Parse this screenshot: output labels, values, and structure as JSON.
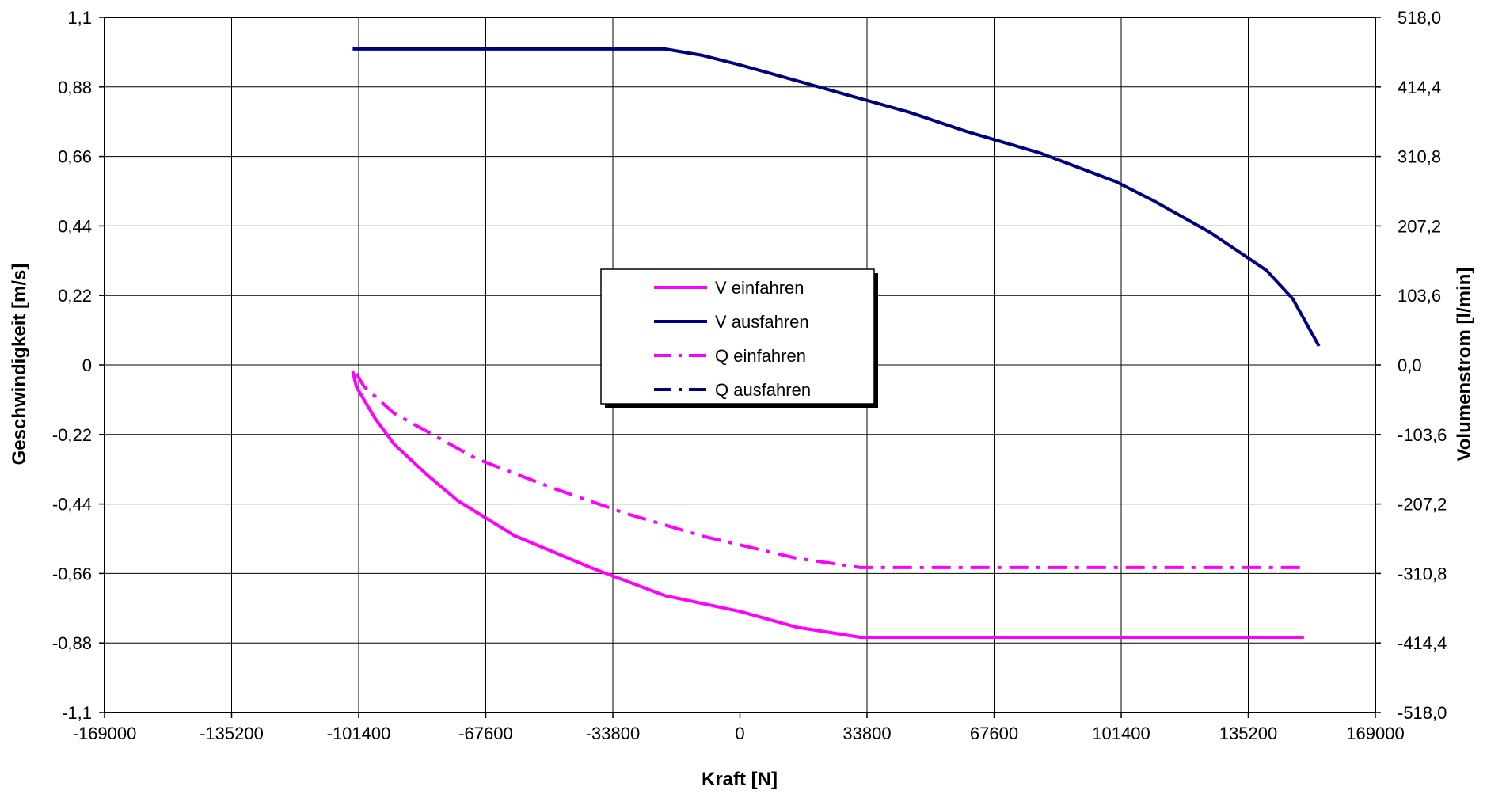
{
  "chart_data": {
    "type": "line",
    "title": "",
    "xlabel": "Kraft [N]",
    "ylabel_left": "Geschwindigkeit [m/s]",
    "ylabel_right": "Volumenstrom [l/min]",
    "xlim": [
      -169000,
      169000
    ],
    "ylim_left": [
      -1.1,
      1.1
    ],
    "ylim_right": [
      -518.0,
      518.0
    ],
    "grid": true,
    "legend_position": "center",
    "x_ticks": [
      "-169000",
      "-135200",
      "-101400",
      "-67600",
      "-33800",
      "0",
      "33800",
      "67600",
      "101400",
      "135200",
      "169000"
    ],
    "y_left_ticks": [
      "1,1",
      "0,88",
      "0,66",
      "0,44",
      "0,22",
      "0",
      "-0,22",
      "-0,44",
      "-0,66",
      "-0,88",
      "-1,1"
    ],
    "y_right_ticks": [
      "518,0",
      "414,4",
      "310,8",
      "207,2",
      "103,6",
      "0,0",
      "-103,6",
      "-207,2",
      "-310,8",
      "-414,4",
      "-518,0"
    ],
    "series": [
      {
        "name": "V einfahren",
        "color": "#ff00ff",
        "dash": "solid",
        "axis": "left",
        "points": [
          [
            -103000,
            -0.02
          ],
          [
            -102000,
            -0.07
          ],
          [
            -97000,
            -0.17
          ],
          [
            -92000,
            -0.25
          ],
          [
            -83000,
            -0.35
          ],
          [
            -75000,
            -0.43
          ],
          [
            -60000,
            -0.54
          ],
          [
            -40000,
            -0.64
          ],
          [
            -20000,
            -0.73
          ],
          [
            0,
            -0.78
          ],
          [
            15000,
            -0.83
          ],
          [
            32000,
            -0.862
          ],
          [
            150000,
            -0.862
          ]
        ]
      },
      {
        "name": "V ausfahren",
        "color": "#000080",
        "dash": "solid",
        "axis": "left",
        "points": [
          [
            -103000,
            1.0
          ],
          [
            -20000,
            1.0
          ],
          [
            -10000,
            0.98
          ],
          [
            0,
            0.95
          ],
          [
            15000,
            0.9
          ],
          [
            30000,
            0.85
          ],
          [
            45000,
            0.8
          ],
          [
            60000,
            0.74
          ],
          [
            80000,
            0.67
          ],
          [
            100000,
            0.58
          ],
          [
            110000,
            0.52
          ],
          [
            125000,
            0.42
          ],
          [
            140000,
            0.3
          ],
          [
            147000,
            0.21
          ],
          [
            154000,
            0.06
          ]
        ]
      },
      {
        "name": "Q einfahren",
        "color": "#ff00ff",
        "dash": "dashdot",
        "axis": "right",
        "points": [
          [
            -102000,
            -13
          ],
          [
            -100000,
            -32
          ],
          [
            -92000,
            -72
          ],
          [
            -70000,
            -140
          ],
          [
            -50000,
            -183
          ],
          [
            -30000,
            -222
          ],
          [
            -10000,
            -255
          ],
          [
            15000,
            -288
          ],
          [
            32000,
            -302
          ],
          [
            150000,
            -302
          ]
        ]
      },
      {
        "name": "Q ausfahren",
        "color": "#000080",
        "dash": "dashdot",
        "axis": "right",
        "points": []
      }
    ]
  }
}
